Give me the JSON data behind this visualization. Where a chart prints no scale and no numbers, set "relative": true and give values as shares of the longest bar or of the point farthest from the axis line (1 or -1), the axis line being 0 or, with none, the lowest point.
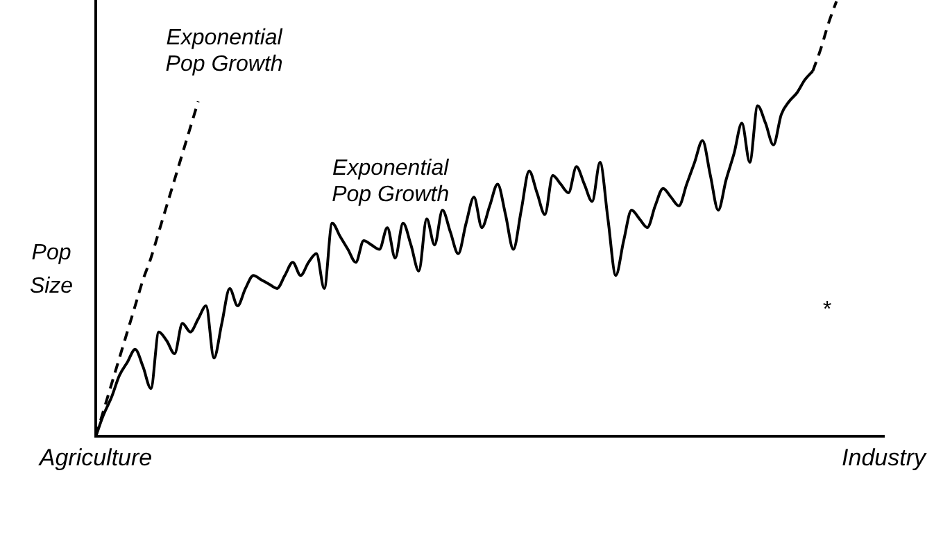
{
  "chart_data": {
    "type": "line",
    "relative": true,
    "ylabel": "Pop Size",
    "grid": false,
    "legend": false,
    "marker": "none",
    "categories": [
      "Agriculture",
      null,
      null,
      null,
      null,
      null,
      null,
      null,
      null,
      null,
      null,
      null,
      null,
      null,
      null,
      null,
      null,
      null,
      null,
      null,
      null,
      null,
      null,
      null,
      null,
      null,
      null,
      null,
      null,
      null,
      null,
      null,
      null,
      null,
      null,
      null,
      null,
      null,
      null,
      null,
      null,
      null,
      null,
      null,
      null,
      null,
      null,
      null,
      null,
      null,
      null,
      null,
      null,
      null,
      null,
      null,
      null,
      null,
      null,
      null,
      null,
      null,
      null,
      null,
      null,
      null,
      null,
      null,
      null,
      null,
      null,
      null,
      null,
      null,
      null,
      null,
      null,
      null,
      null,
      null,
      null,
      null,
      null,
      null,
      null,
      null,
      null,
      null,
      null,
      null,
      null,
      null,
      null,
      null,
      null,
      null,
      null,
      null,
      null,
      null,
      "Industry"
    ],
    "series": [
      {
        "color": "#000000",
        "line_style": "solid",
        "values": [
          0,
          0.05,
          0.09,
          0.14,
          0.17,
          0.2,
          0.16,
          0.11,
          0.24,
          0.22,
          0.19,
          0.26,
          0.24,
          0.27,
          0.3,
          0.18,
          0.26,
          0.34,
          0.3,
          0.34,
          0.37,
          0.36,
          0.35,
          0.34,
          0.37,
          0.4,
          0.37,
          0.4,
          0.42,
          0.34,
          0.49,
          0.46,
          0.43,
          0.4,
          0.45,
          0.44,
          0.43,
          0.48,
          0.41,
          0.49,
          0.44,
          0.38,
          0.5,
          0.44,
          0.52,
          0.47,
          0.42,
          0.49,
          0.55,
          0.48,
          0.53,
          0.58,
          0.51,
          0.43,
          0.52,
          0.61,
          0.56,
          0.51,
          0.6,
          0.58,
          0.56,
          0.62,
          0.58,
          0.54,
          0.63,
          0.5,
          0.37,
          0.45,
          0.52,
          0.5,
          0.48,
          0.53,
          0.57,
          0.55,
          0.53,
          0.58,
          0.63,
          0.68,
          0.6,
          0.52,
          0.59,
          0.65,
          0.72,
          0.63,
          0.76,
          0.72,
          0.67,
          0.74,
          0.77,
          0.79,
          0.82,
          0.84,
          null,
          null,
          null,
          null,
          null,
          null,
          null,
          null,
          null
        ]
      },
      {
        "color": "#000000",
        "line_style": "dashed",
        "values": [
          0,
          0.06,
          0.12,
          0.18,
          0.24,
          0.3,
          0.36,
          0.41,
          0.47,
          0.53,
          0.59,
          0.65,
          0.71,
          0.77,
          null,
          null,
          null,
          null,
          null,
          null,
          null,
          null,
          null,
          null,
          null,
          null,
          null,
          null,
          null,
          null,
          null,
          null,
          null,
          null,
          null,
          null,
          null,
          null,
          null,
          null,
          null,
          null,
          null,
          null,
          null,
          null,
          null,
          null,
          null,
          null,
          null,
          null,
          null,
          null,
          null,
          null,
          null,
          null,
          null,
          null,
          null,
          null,
          null,
          null,
          null,
          null,
          null,
          null,
          null,
          null,
          null,
          null,
          null,
          null,
          null,
          null,
          null,
          null,
          null,
          null,
          null,
          null,
          null,
          null,
          null,
          null,
          null,
          null,
          null,
          null,
          null,
          null,
          null,
          null,
          null,
          null,
          null,
          null,
          null,
          null,
          null
        ]
      },
      {
        "color": "#000000",
        "line_style": "dashed",
        "values": [
          null,
          null,
          null,
          null,
          null,
          null,
          null,
          null,
          null,
          null,
          null,
          null,
          null,
          null,
          null,
          null,
          null,
          null,
          null,
          null,
          null,
          null,
          null,
          null,
          null,
          null,
          null,
          null,
          null,
          null,
          null,
          null,
          null,
          null,
          null,
          null,
          null,
          null,
          null,
          null,
          null,
          null,
          null,
          null,
          null,
          null,
          null,
          null,
          null,
          null,
          null,
          null,
          null,
          null,
          null,
          null,
          null,
          null,
          null,
          null,
          null,
          null,
          null,
          null,
          null,
          null,
          null,
          null,
          null,
          null,
          null,
          null,
          null,
          null,
          null,
          null,
          null,
          null,
          null,
          null,
          null,
          null,
          null,
          null,
          null,
          null,
          null,
          null,
          null,
          null,
          null,
          0.84,
          0.89,
          0.95,
          1,
          null,
          null,
          null,
          null,
          null,
          null
        ]
      }
    ],
    "annotations": [
      "Exponential Pop Growth",
      "Exponential Pop Growth",
      "*"
    ]
  }
}
